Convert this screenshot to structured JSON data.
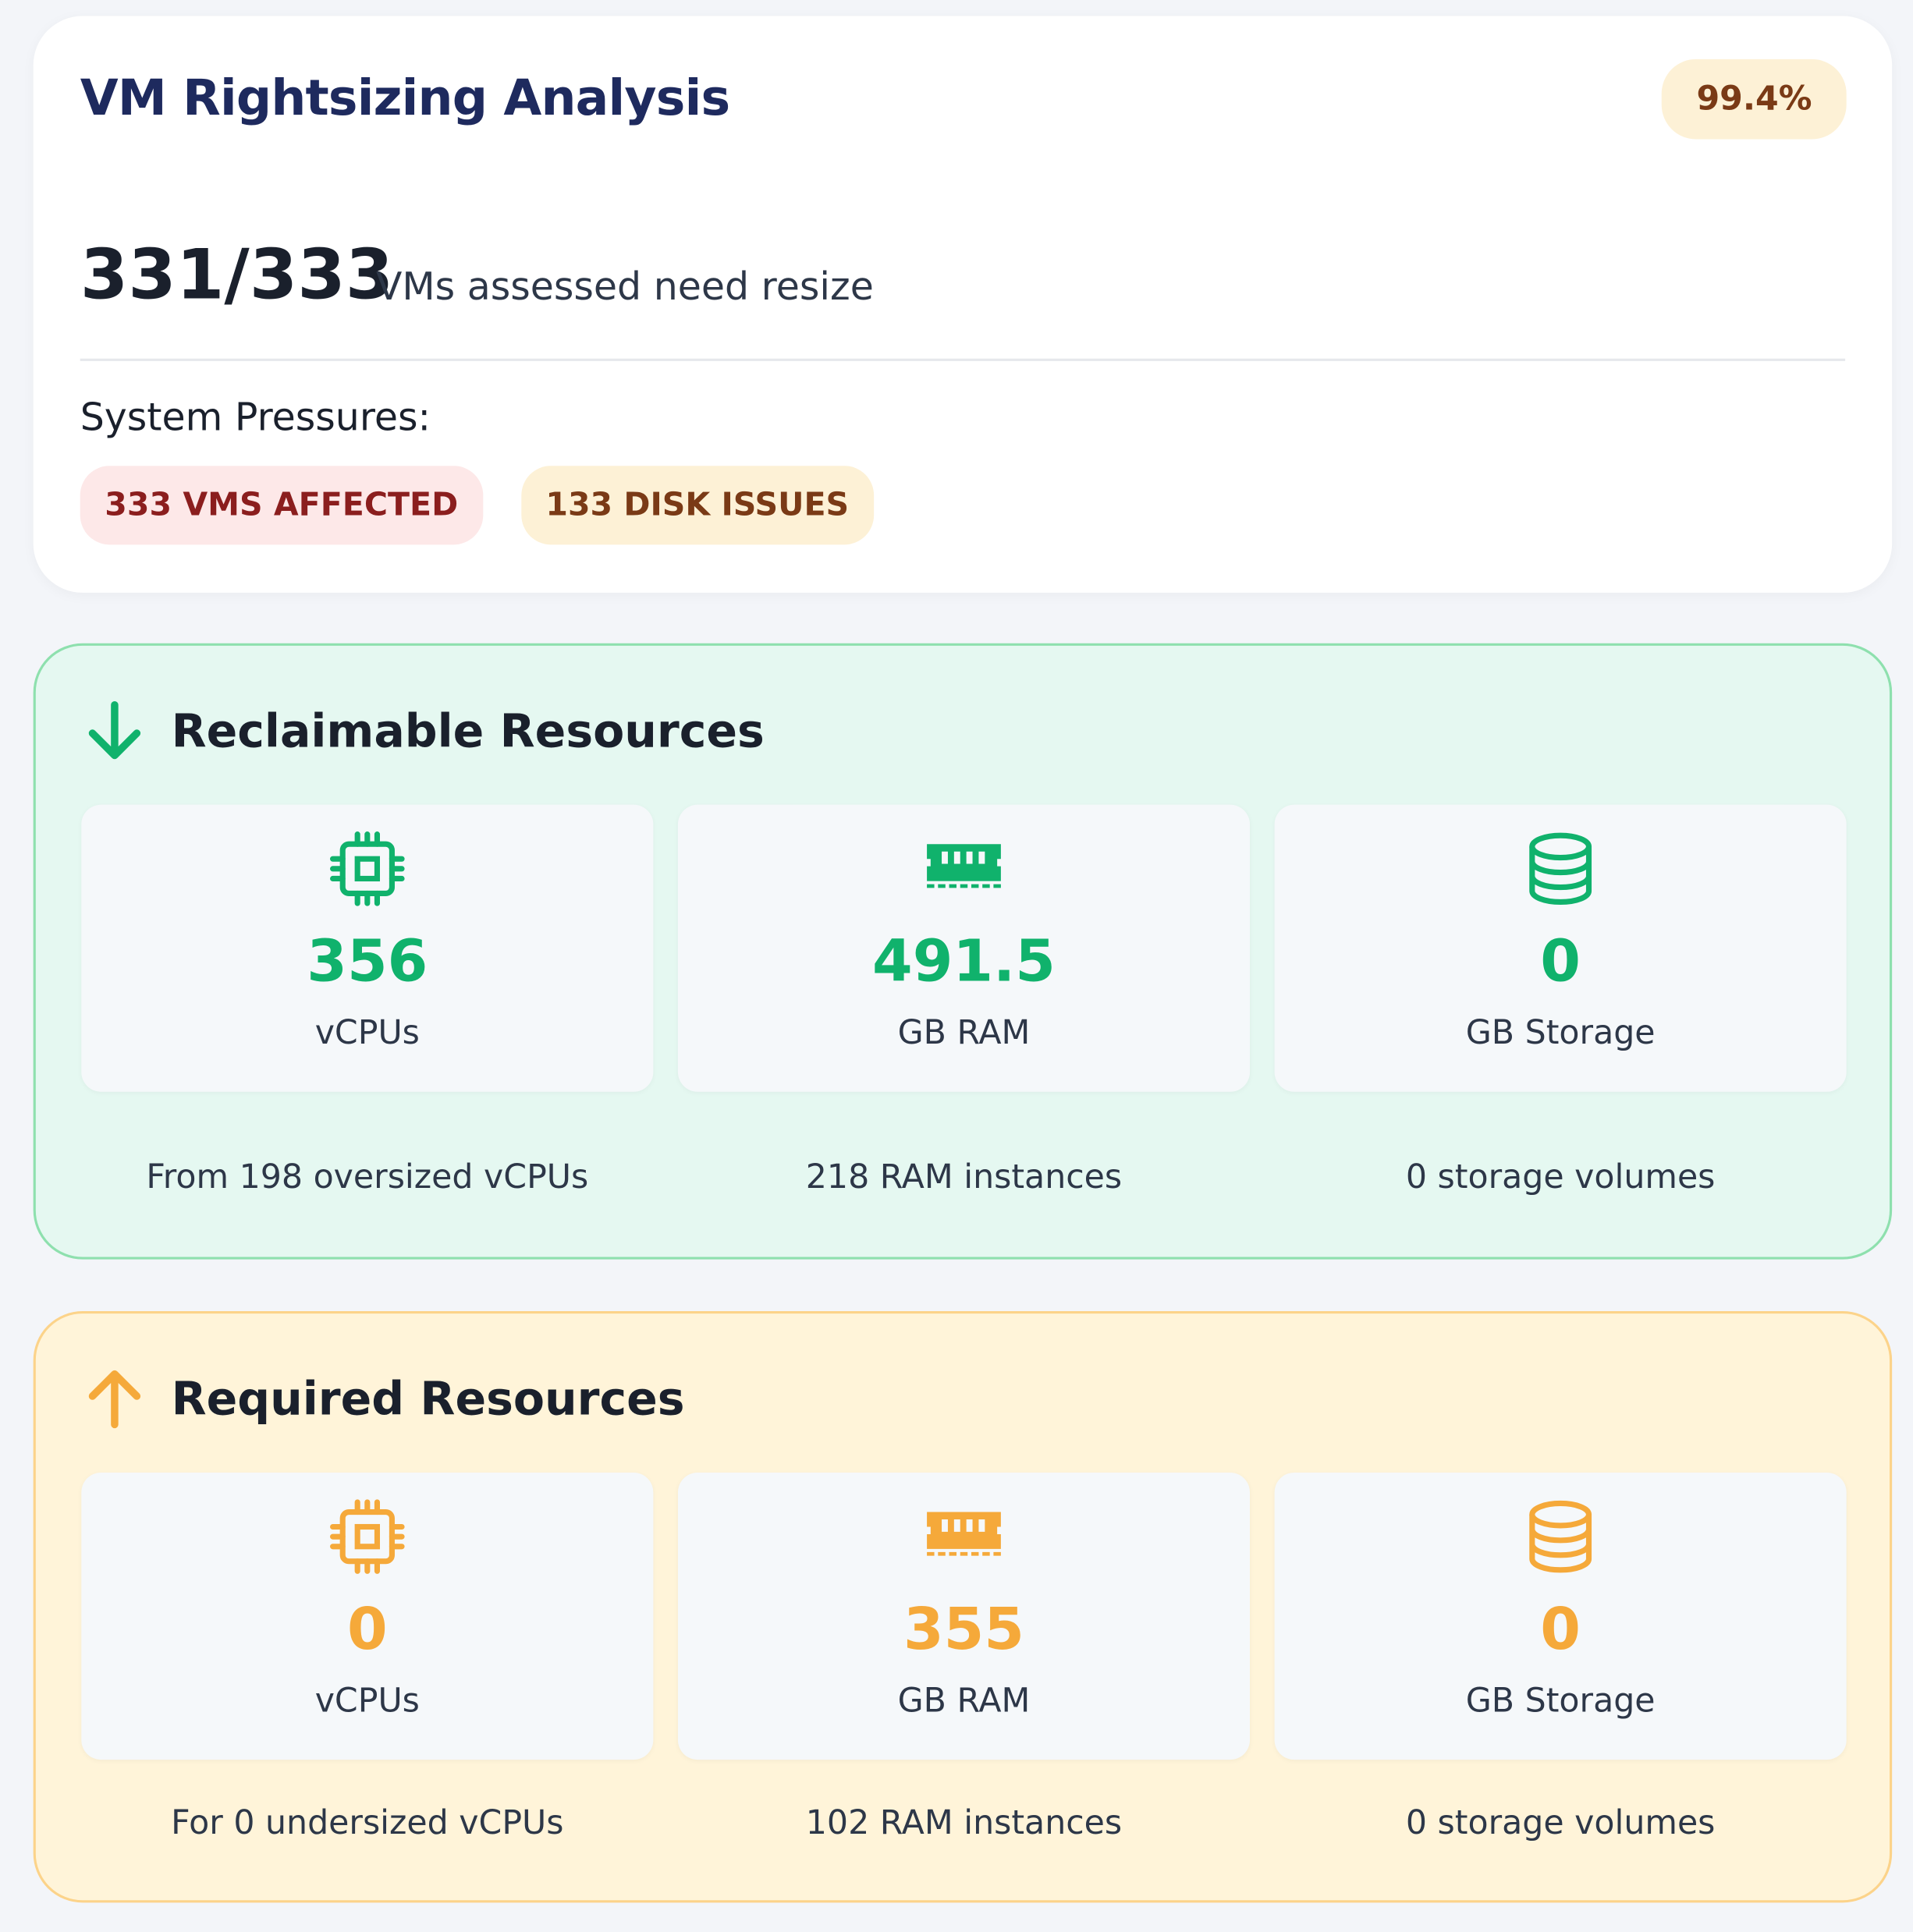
{
  "header": {
    "title": "VM Rightsizing Analysis",
    "badge": "99.4%",
    "count": "331/333",
    "count_text": "VMs assessed need resize",
    "pressures_label": "System Pressures:",
    "tags": [
      "333 VMS AFFECTED",
      "133 DISK ISSUES"
    ]
  },
  "sections": [
    {
      "title": "Reclaimable Resources",
      "items": [
        {
          "value": "356",
          "unit": "vCPUs",
          "note": "From 198 oversized vCPUs"
        },
        {
          "value": "491.5",
          "unit": "GB RAM",
          "note": "218 RAM instances"
        },
        {
          "value": "0",
          "unit": "GB Storage",
          "note": "0 storage volumes"
        }
      ]
    },
    {
      "title": "Required Resources",
      "items": [
        {
          "value": "0",
          "unit": "vCPUs",
          "note": "For 0 undersized vCPUs"
        },
        {
          "value": "355",
          "unit": "GB RAM",
          "note": "102 RAM instances"
        },
        {
          "value": "0",
          "unit": "GB Storage",
          "note": "0 storage volumes"
        }
      ]
    }
  ]
}
